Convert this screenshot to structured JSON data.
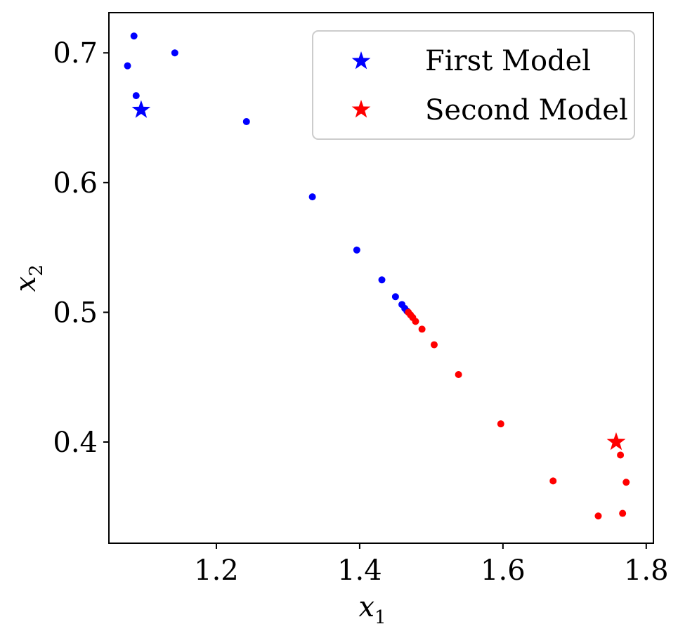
{
  "chart_data": {
    "type": "scatter",
    "xlabel": "x",
    "xlabel_sub": "1",
    "ylabel": "x",
    "ylabel_sub": "2",
    "xlim": [
      1.05,
      1.81
    ],
    "ylim": [
      0.322,
      0.731
    ],
    "xticks": [
      1.2,
      1.4,
      1.6,
      1.8
    ],
    "xtick_labels": [
      "1.2",
      "1.4",
      "1.6",
      "1.8"
    ],
    "yticks": [
      0.4,
      0.5,
      0.6,
      0.7
    ],
    "ytick_labels": [
      "0.4",
      "0.5",
      "0.6",
      "0.7"
    ],
    "grid": false,
    "legend_position": "top-right",
    "series": [
      {
        "name": "First Model",
        "color": "#0000ff",
        "points": [
          [
            1.085,
            0.713
          ],
          [
            1.076,
            0.69
          ],
          [
            1.142,
            0.7
          ],
          [
            1.088,
            0.667
          ],
          [
            1.242,
            0.647
          ],
          [
            1.334,
            0.589
          ],
          [
            1.396,
            0.548
          ],
          [
            1.431,
            0.525
          ],
          [
            1.45,
            0.512
          ],
          [
            1.459,
            0.506
          ],
          [
            1.463,
            0.503
          ],
          [
            1.466,
            0.501
          ]
        ],
        "marker_point": [
          1.095,
          0.656
        ]
      },
      {
        "name": "Second Model",
        "color": "#ff0000",
        "points": [
          [
            1.468,
            0.5
          ],
          [
            1.471,
            0.498
          ],
          [
            1.474,
            0.496
          ],
          [
            1.478,
            0.493
          ],
          [
            1.487,
            0.487
          ],
          [
            1.504,
            0.475
          ],
          [
            1.538,
            0.452
          ],
          [
            1.597,
            0.414
          ],
          [
            1.67,
            0.37
          ],
          [
            1.733,
            0.343
          ],
          [
            1.767,
            0.345
          ],
          [
            1.764,
            0.39
          ],
          [
            1.772,
            0.369
          ]
        ],
        "marker_point": [
          1.758,
          0.4
        ]
      }
    ]
  }
}
